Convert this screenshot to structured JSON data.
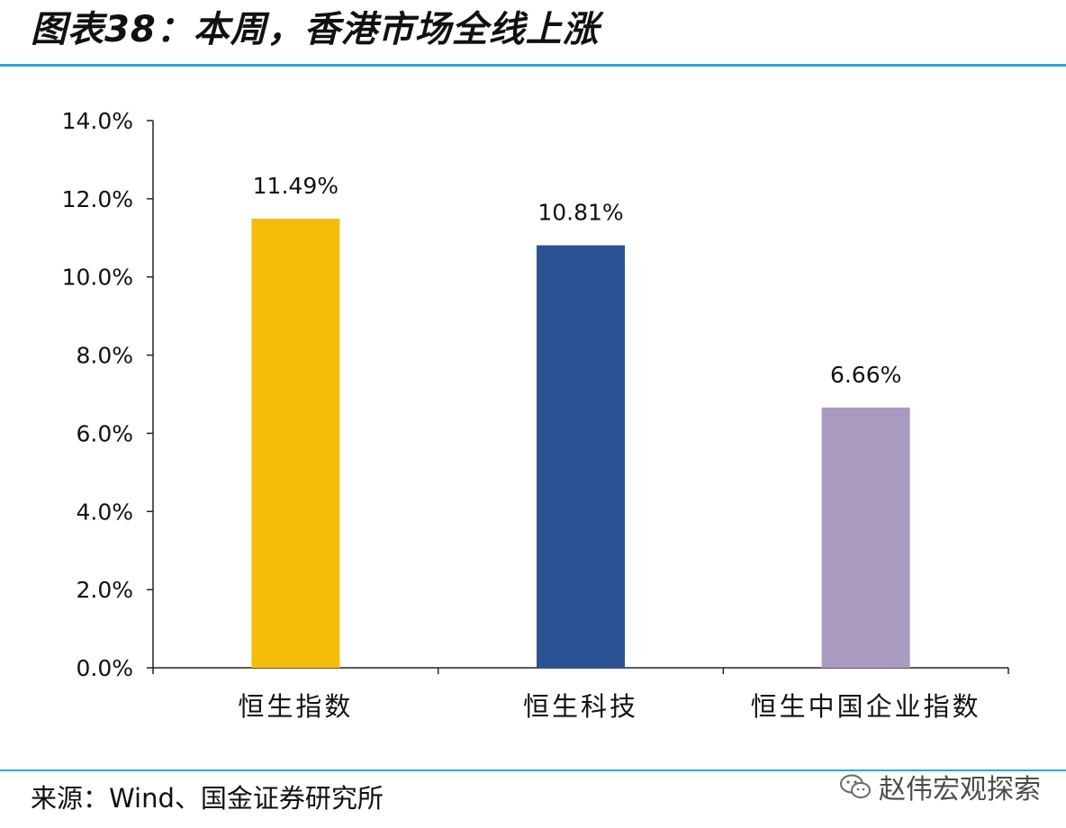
{
  "header": {
    "title": "图表38：本周，香港市场全线上涨"
  },
  "footer": {
    "source": "来源：Wind、国金证券研究所",
    "watermark": "赵伟宏观探索"
  },
  "colors": {
    "rule": "#2aa9cf",
    "bar_1": "#f5bd0a",
    "bar_2": "#2b5394",
    "bar_3": "#a99abf",
    "axis": "#222222"
  },
  "icons": {
    "watermark": "wechat-icon"
  },
  "chart_data": {
    "type": "bar",
    "categories": [
      "恒生指数",
      "恒生科技",
      "恒生中国企业指数"
    ],
    "values": [
      11.49,
      10.81,
      6.66
    ],
    "data_labels": [
      "11.49%",
      "10.81%",
      "6.66%"
    ],
    "bar_colors": [
      "#f5bd0a",
      "#2b5394",
      "#a99abf"
    ],
    "yticks": [
      "0.0%",
      "2.0%",
      "4.0%",
      "6.0%",
      "8.0%",
      "10.0%",
      "12.0%",
      "14.0%"
    ],
    "ylim": [
      0,
      14
    ],
    "ystep": 2,
    "title": "",
    "xlabel": "",
    "ylabel": "",
    "grid": false,
    "legend": "none"
  }
}
